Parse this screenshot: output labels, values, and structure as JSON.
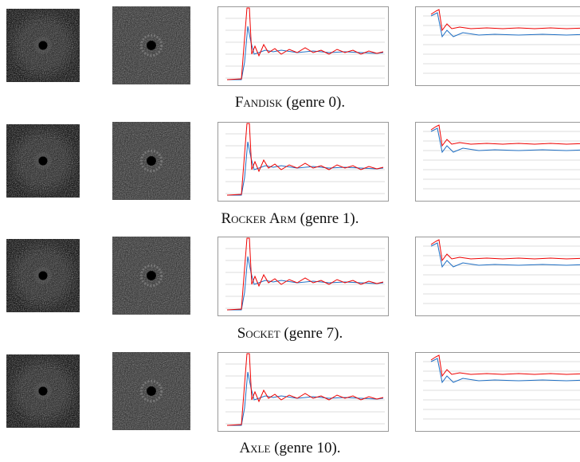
{
  "figure": {
    "rows": [
      {
        "name": "Fandisk",
        "caption": "(genre 0)."
      },
      {
        "name": "Rocker Arm",
        "caption": "(genre 1)."
      },
      {
        "name": "Socket",
        "caption": "(genre 7)."
      },
      {
        "name": "Axle",
        "caption": "(genre 10)."
      }
    ]
  }
}
